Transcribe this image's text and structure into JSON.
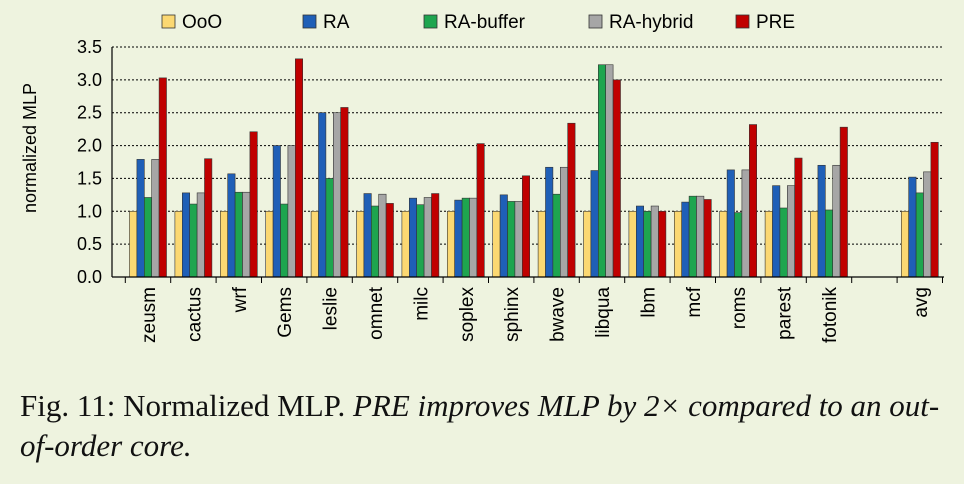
{
  "chart_data": {
    "type": "bar",
    "ylabel": "normalized MLP",
    "ylim": [
      0,
      3.5
    ],
    "yticks": [
      "0.0",
      "0.5",
      "1.0",
      "1.5",
      "2.0",
      "2.5",
      "3.0",
      "3.5"
    ],
    "grid": "horizontal dotted",
    "legend_position": "top",
    "categories": [
      "zeusm",
      "cactus",
      "wrf",
      "Gems",
      "leslie",
      "omnet",
      "milc",
      "soplex",
      "sphinx",
      "bwave",
      "libqua",
      "lbm",
      "mcf",
      "roms",
      "parest",
      "fotonik",
      "avg"
    ],
    "series": [
      {
        "name": "OoO",
        "color": "#fbd872",
        "values": [
          1.0,
          1.0,
          1.0,
          1.0,
          1.0,
          1.0,
          1.0,
          1.0,
          1.0,
          1.0,
          1.0,
          1.0,
          1.0,
          1.0,
          1.0,
          1.0,
          1.0
        ]
      },
      {
        "name": "RA",
        "color": "#1f5fb7",
        "values": [
          1.79,
          1.28,
          1.57,
          2.0,
          2.5,
          1.27,
          1.2,
          1.17,
          1.25,
          1.67,
          1.62,
          1.08,
          1.14,
          1.63,
          1.39,
          1.7,
          1.52
        ]
      },
      {
        "name": "RA-buffer",
        "color": "#1ea54f",
        "values": [
          1.21,
          1.11,
          1.29,
          1.11,
          1.5,
          1.08,
          1.1,
          1.2,
          1.15,
          1.26,
          3.23,
          1.0,
          1.23,
          0.98,
          1.05,
          1.02,
          1.28
        ]
      },
      {
        "name": "RA-hybrid",
        "color": "#a6a6a6",
        "values": [
          1.79,
          1.28,
          1.29,
          2.0,
          2.5,
          1.26,
          1.21,
          1.2,
          1.15,
          1.67,
          3.23,
          1.08,
          1.23,
          1.63,
          1.39,
          1.7,
          1.6
        ]
      },
      {
        "name": "PRE",
        "color": "#c00000",
        "values": [
          3.03,
          1.8,
          2.21,
          3.32,
          2.58,
          1.12,
          1.27,
          2.03,
          1.54,
          2.34,
          3.0,
          1.0,
          1.18,
          2.32,
          1.81,
          2.28,
          2.05
        ]
      }
    ]
  },
  "caption": {
    "label": "Fig. 11: Normalized MLP.",
    "text": "PRE improves MLP by 2× compared to an out-of-order core."
  }
}
